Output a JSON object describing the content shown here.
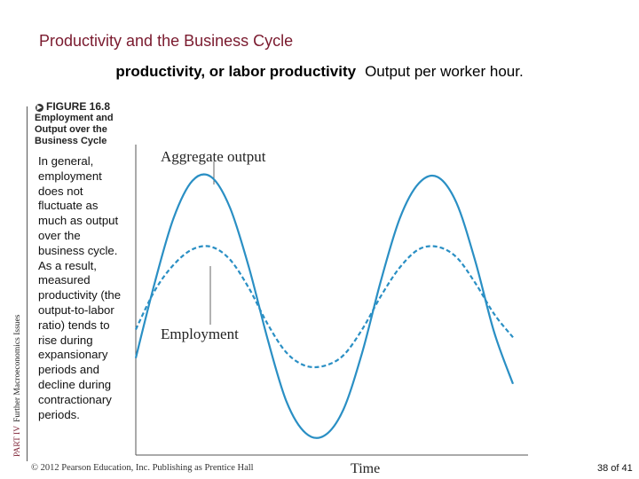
{
  "slide": {
    "title": "Productivity and the Business Cycle",
    "definition_term": "productivity, or labor productivity",
    "definition_text": "Output per worker hour.",
    "figure_label": "FIGURE 16.8",
    "figure_caption": "Employment and Output over the Business Cycle",
    "side_text": "In general, employment does not fluctuate as much as output over the business cycle. As a result, measured productivity (the output-to-labor ratio) tends to rise during expansionary periods and decline during contractionary periods.",
    "part_number": "PART IV",
    "part_title": "Further Macroeconomics Issues",
    "copyright": "© 2012 Pearson Education, Inc. Publishing as Prentice Hall",
    "page_number": "38 of 41"
  },
  "chart_data": {
    "type": "line",
    "xlabel": "Time",
    "ylabel": "",
    "annotations": [
      "Aggregate output",
      "Employment"
    ],
    "series": [
      {
        "name": "Aggregate output",
        "style": "solid",
        "x": [
          0,
          0.5,
          1,
          1.5,
          2,
          2.5,
          3,
          3.5,
          4,
          4.5,
          5,
          5.5,
          6,
          6.5,
          7,
          7.5,
          8,
          8.5,
          9,
          9.5,
          10
        ],
        "values": [
          -0.4,
          0.18,
          0.68,
          0.97,
          1.0,
          0.76,
          0.3,
          -0.26,
          -0.74,
          -0.98,
          -1.0,
          -0.8,
          -0.36,
          0.2,
          0.68,
          0.95,
          1.0,
          0.8,
          0.35,
          -0.2,
          -0.6
        ]
      },
      {
        "name": "Employment",
        "style": "dashed",
        "x": [
          0,
          0.5,
          1,
          1.5,
          2,
          2.5,
          3,
          3.5,
          4,
          4.5,
          5,
          5.5,
          6,
          6.5,
          7,
          7.5,
          8,
          8.5,
          9,
          9.5,
          10
        ],
        "values": [
          -0.18,
          0.12,
          0.32,
          0.44,
          0.46,
          0.36,
          0.14,
          -0.14,
          -0.36,
          -0.46,
          -0.46,
          -0.38,
          -0.18,
          0.08,
          0.3,
          0.44,
          0.46,
          0.38,
          0.18,
          -0.06,
          -0.24
        ]
      }
    ],
    "xlim": [
      0,
      10
    ],
    "ylim": [
      -1.15,
      1.25
    ],
    "grid": false,
    "legend": "none",
    "colors": {
      "line": "#2a8fc4",
      "axis": "#555555",
      "pointer": "#666666"
    }
  }
}
